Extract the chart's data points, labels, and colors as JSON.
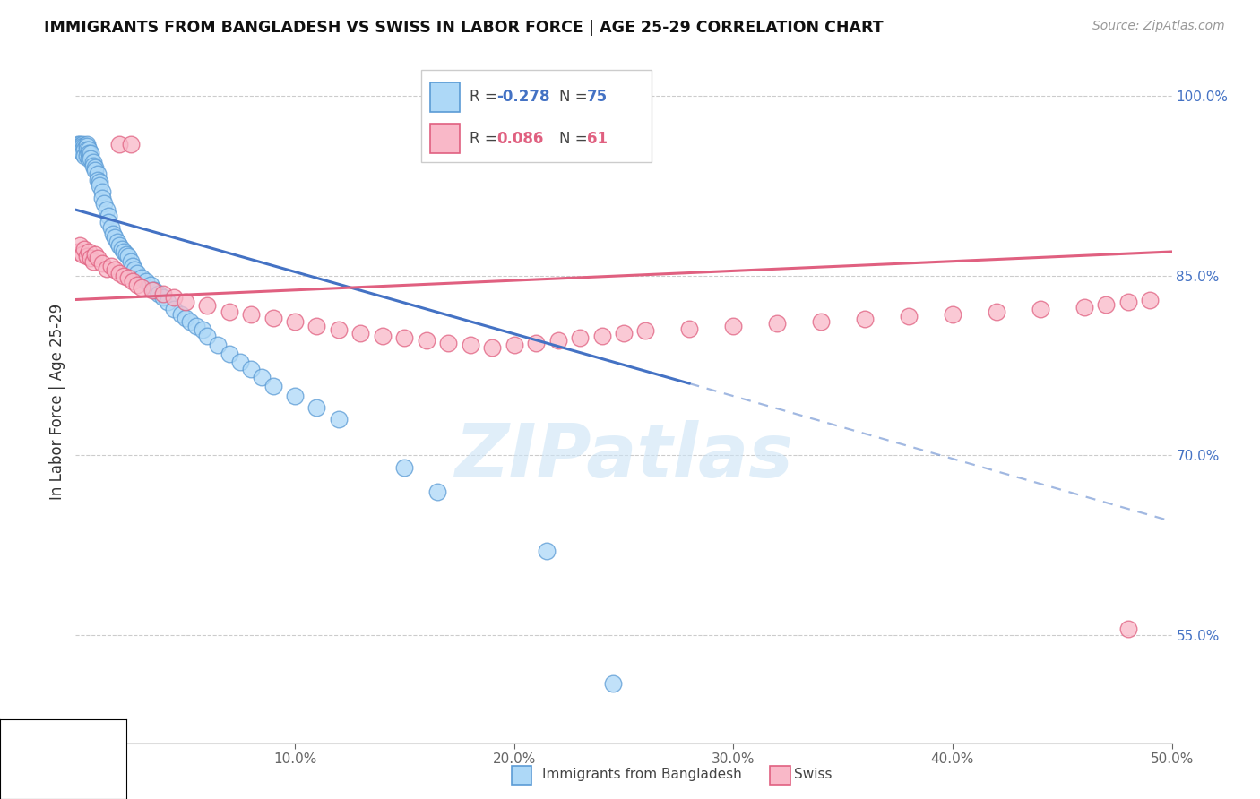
{
  "title": "IMMIGRANTS FROM BANGLADESH VS SWISS IN LABOR FORCE | AGE 25-29 CORRELATION CHART",
  "source": "Source: ZipAtlas.com",
  "ylabel": "In Labor Force | Age 25-29",
  "xlim": [
    0.0,
    0.5
  ],
  "ylim": [
    0.46,
    1.03
  ],
  "yticks": [
    1.0,
    0.85,
    0.7,
    0.55
  ],
  "ytick_labels": [
    "100.0%",
    "85.0%",
    "70.0%",
    "55.0%"
  ],
  "xticks": [
    0.0,
    0.1,
    0.2,
    0.3,
    0.4,
    0.5
  ],
  "xtick_labels": [
    "0.0%",
    "10.0%",
    "20.0%",
    "30.0%",
    "40.0%",
    "50.0%"
  ],
  "legend_r1": "R = -0.278",
  "legend_n1": "N = 75",
  "legend_r2": "R =  0.086",
  "legend_n2": "N = 61",
  "color_bangladesh_face": "#add8f7",
  "color_bangladesh_edge": "#5b9bd5",
  "color_swiss_face": "#f9b8c8",
  "color_swiss_edge": "#e06080",
  "color_line_bangladesh": "#4472c4",
  "color_line_swiss": "#e06080",
  "watermark": "ZIPatlas",
  "bangladesh_x": [
    0.001,
    0.001,
    0.002,
    0.002,
    0.002,
    0.003,
    0.003,
    0.003,
    0.003,
    0.004,
    0.004,
    0.004,
    0.005,
    0.005,
    0.005,
    0.005,
    0.006,
    0.006,
    0.006,
    0.007,
    0.007,
    0.008,
    0.008,
    0.009,
    0.009,
    0.01,
    0.01,
    0.011,
    0.011,
    0.012,
    0.012,
    0.013,
    0.014,
    0.015,
    0.015,
    0.016,
    0.017,
    0.018,
    0.019,
    0.02,
    0.021,
    0.022,
    0.023,
    0.024,
    0.025,
    0.026,
    0.027,
    0.028,
    0.03,
    0.032,
    0.034,
    0.036,
    0.038,
    0.04,
    0.042,
    0.045,
    0.048,
    0.05,
    0.052,
    0.055,
    0.058,
    0.06,
    0.065,
    0.07,
    0.075,
    0.08,
    0.085,
    0.09,
    0.1,
    0.11,
    0.12,
    0.15,
    0.165,
    0.215,
    0.245
  ],
  "bangladesh_y": [
    0.96,
    0.958,
    0.96,
    0.958,
    0.955,
    0.96,
    0.958,
    0.955,
    0.952,
    0.958,
    0.955,
    0.95,
    0.96,
    0.958,
    0.955,
    0.95,
    0.955,
    0.952,
    0.948,
    0.952,
    0.948,
    0.945,
    0.942,
    0.94,
    0.938,
    0.935,
    0.93,
    0.928,
    0.925,
    0.92,
    0.915,
    0.91,
    0.905,
    0.9,
    0.895,
    0.89,
    0.885,
    0.882,
    0.878,
    0.875,
    0.872,
    0.87,
    0.868,
    0.866,
    0.862,
    0.858,
    0.855,
    0.852,
    0.848,
    0.845,
    0.842,
    0.838,
    0.835,
    0.832,
    0.828,
    0.822,
    0.818,
    0.815,
    0.812,
    0.808,
    0.805,
    0.8,
    0.792,
    0.785,
    0.778,
    0.772,
    0.765,
    0.758,
    0.75,
    0.74,
    0.73,
    0.69,
    0.67,
    0.62,
    0.51
  ],
  "swiss_x": [
    0.001,
    0.002,
    0.003,
    0.004,
    0.005,
    0.006,
    0.007,
    0.008,
    0.009,
    0.01,
    0.012,
    0.014,
    0.016,
    0.018,
    0.02,
    0.022,
    0.024,
    0.026,
    0.028,
    0.03,
    0.035,
    0.04,
    0.045,
    0.05,
    0.06,
    0.07,
    0.08,
    0.09,
    0.1,
    0.11,
    0.12,
    0.13,
    0.14,
    0.15,
    0.16,
    0.17,
    0.18,
    0.19,
    0.2,
    0.21,
    0.22,
    0.23,
    0.24,
    0.25,
    0.26,
    0.28,
    0.3,
    0.32,
    0.34,
    0.36,
    0.38,
    0.4,
    0.42,
    0.44,
    0.46,
    0.47,
    0.48,
    0.49,
    0.02,
    0.025,
    0.48
  ],
  "swiss_y": [
    0.87,
    0.875,
    0.868,
    0.872,
    0.866,
    0.87,
    0.865,
    0.862,
    0.868,
    0.865,
    0.86,
    0.856,
    0.858,
    0.855,
    0.852,
    0.85,
    0.848,
    0.845,
    0.842,
    0.84,
    0.838,
    0.835,
    0.832,
    0.828,
    0.825,
    0.82,
    0.818,
    0.815,
    0.812,
    0.808,
    0.805,
    0.802,
    0.8,
    0.798,
    0.796,
    0.794,
    0.792,
    0.79,
    0.792,
    0.794,
    0.796,
    0.798,
    0.8,
    0.802,
    0.804,
    0.806,
    0.808,
    0.81,
    0.812,
    0.814,
    0.816,
    0.818,
    0.82,
    0.822,
    0.824,
    0.826,
    0.828,
    0.83,
    0.96,
    0.96,
    0.555
  ],
  "line_bangladesh_x0": 0.0,
  "line_bangladesh_y0": 0.905,
  "line_bangladesh_x1": 0.28,
  "line_bangladesh_y1": 0.76,
  "line_bangladesh_xdash0": 0.28,
  "line_bangladesh_ydash0": 0.76,
  "line_bangladesh_xdash1": 0.5,
  "line_bangladesh_ydash1": 0.645,
  "line_swiss_x0": 0.0,
  "line_swiss_y0": 0.83,
  "line_swiss_x1": 0.5,
  "line_swiss_y1": 0.87
}
